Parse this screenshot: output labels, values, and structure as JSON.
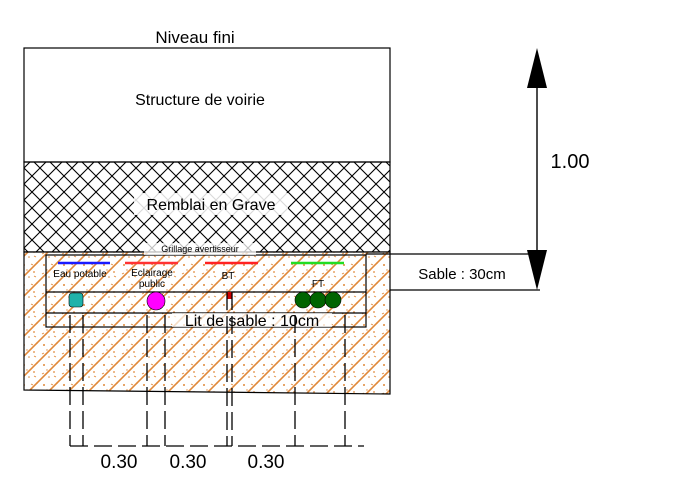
{
  "labels": {
    "surface": "Niveau fini",
    "road_structure": "Structure de voirie",
    "fill_layer": "Remblai en Grave",
    "warning_mesh": "Grillage avertisseur",
    "sand_layer": "Sable : 30cm",
    "sand_bed": "Lit de sable : 10cm",
    "total_depth": "1.00"
  },
  "networks": [
    {
      "label": "Eau potable",
      "line_color": "#1a1aff",
      "pipe_color": "#20b2aa"
    },
    {
      "label": "Eclairage\npublic",
      "line_color": "#ff3333",
      "pipe_color": "#ff00ff"
    },
    {
      "label": "BT",
      "line_color": "#ff2222",
      "pipe_color": "#cc0000"
    },
    {
      "label": "FT",
      "line_color": "#22dd22",
      "pipe_color": "#006400"
    }
  ],
  "spacings": [
    "0.30",
    "0.30",
    "0.30"
  ],
  "colors": {
    "sand_hatch": "#e0893a",
    "outline": "#000000"
  }
}
